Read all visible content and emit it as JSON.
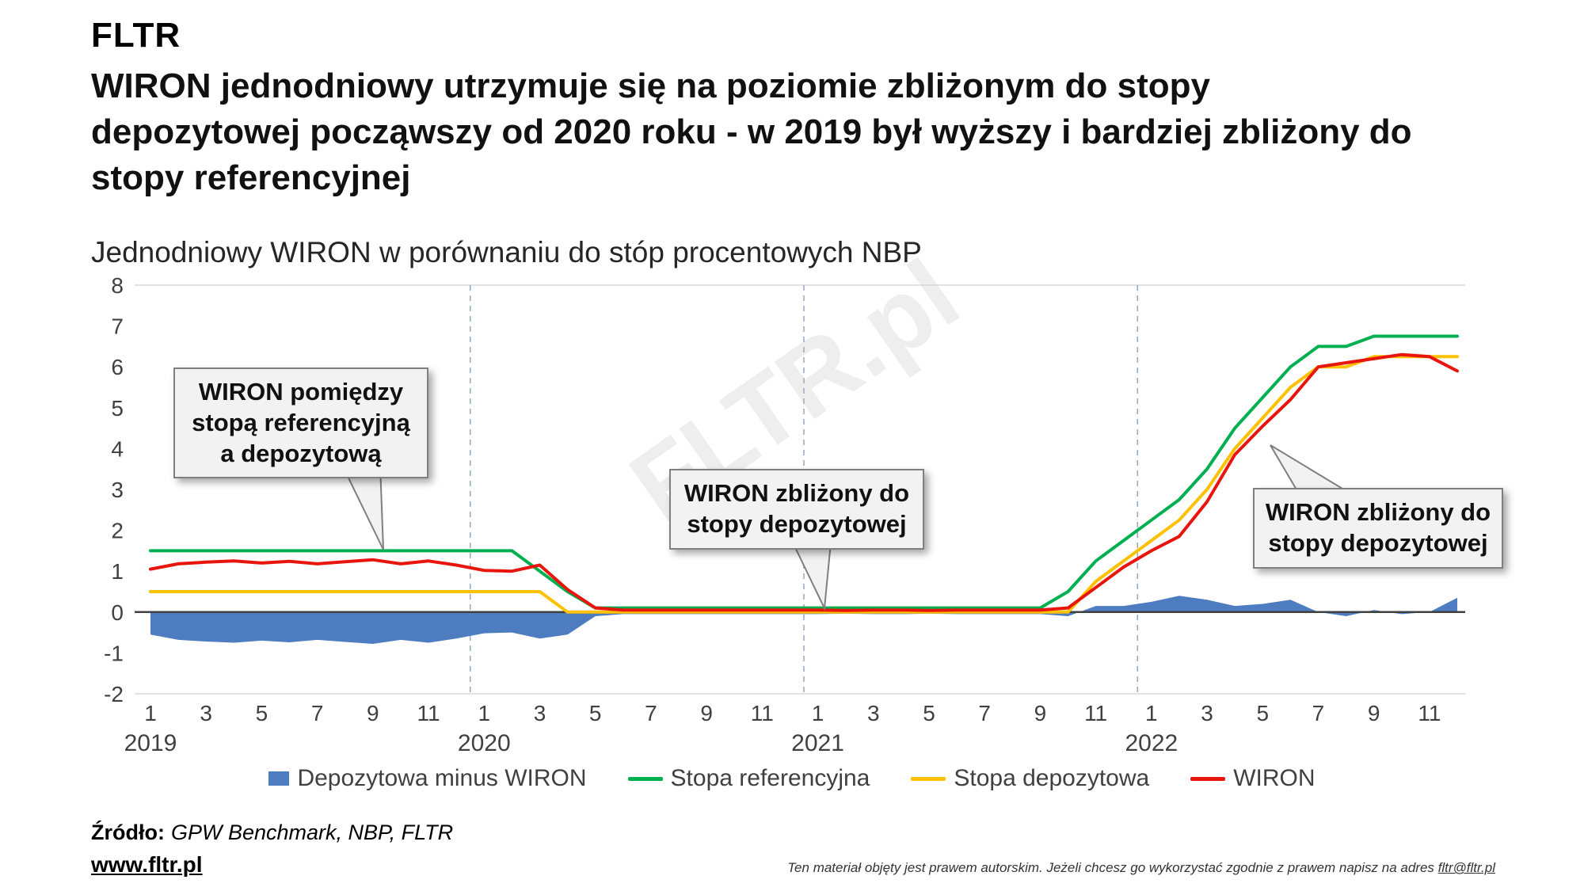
{
  "brand": {
    "logo": "FLTR"
  },
  "headline": "WIRON jednodniowy utrzymuje się na poziomie zbliżonym do stopy\ndepozytowej począwszy od 2020 roku - w 2019 był wyższy i bardziej zbliżony do\nstopy referencyjnej",
  "annotations": [
    {
      "text": "WIRON pomiędzy\nstopą referencyjną\na depozytową"
    },
    {
      "text": "WIRON zbliżony do\nstopy depozytowej"
    },
    {
      "text": "WIRON zbliżony do\nstopy depozytowej"
    }
  ],
  "watermark": {
    "text": "FLTR.pl"
  },
  "chart_data": {
    "type": "line",
    "title": "Jednodniowy WIRON w porównaniu do stóp procentowych NBP",
    "xlabel": "",
    "ylabel": "",
    "ylim": [
      -2,
      8
    ],
    "y_ticks": [
      8,
      7,
      6,
      5,
      4,
      3,
      2,
      1,
      0,
      -1,
      -2
    ],
    "x_years": [
      2019,
      2020,
      2021,
      2022
    ],
    "x_month_ticks": [
      1,
      3,
      5,
      7,
      9,
      11
    ],
    "grid": "zero-axis, year separators dashed, top/bottom light rules",
    "legend_position": "bottom",
    "series": [
      {
        "name": "Depozytowa minus WIRON",
        "type": "area",
        "color": "#4d7cc0",
        "values": [
          -0.55,
          -0.68,
          -0.72,
          -0.75,
          -0.7,
          -0.74,
          -0.68,
          -0.73,
          -0.78,
          -0.68,
          -0.75,
          -0.65,
          -0.52,
          -0.5,
          -0.65,
          -0.55,
          -0.1,
          -0.05,
          -0.05,
          -0.05,
          -0.05,
          -0.05,
          -0.05,
          -0.05,
          -0.05,
          -0.04,
          -0.05,
          -0.05,
          -0.04,
          -0.05,
          -0.05,
          -0.05,
          -0.05,
          -0.1,
          0.15,
          0.15,
          0.25,
          0.4,
          0.3,
          0.15,
          0.2,
          0.3,
          0.0,
          -0.1,
          0.05,
          -0.05,
          0.0,
          0.35
        ]
      },
      {
        "name": "Stopa referencyjna",
        "type": "line",
        "color": "#00b050",
        "values": [
          1.5,
          1.5,
          1.5,
          1.5,
          1.5,
          1.5,
          1.5,
          1.5,
          1.5,
          1.5,
          1.5,
          1.5,
          1.5,
          1.5,
          1.0,
          0.5,
          0.1,
          0.1,
          0.1,
          0.1,
          0.1,
          0.1,
          0.1,
          0.1,
          0.1,
          0.1,
          0.1,
          0.1,
          0.1,
          0.1,
          0.1,
          0.1,
          0.1,
          0.5,
          1.25,
          1.75,
          2.25,
          2.75,
          3.5,
          4.5,
          5.25,
          6.0,
          6.5,
          6.5,
          6.75,
          6.75,
          6.75,
          6.75
        ]
      },
      {
        "name": "Stopa depozytowa",
        "type": "line",
        "color": "#ffc000",
        "values": [
          0.5,
          0.5,
          0.5,
          0.5,
          0.5,
          0.5,
          0.5,
          0.5,
          0.5,
          0.5,
          0.5,
          0.5,
          0.5,
          0.5,
          0.5,
          0.0,
          0.0,
          0.0,
          0.0,
          0.0,
          0.0,
          0.0,
          0.0,
          0.0,
          0.0,
          0.0,
          0.0,
          0.0,
          0.0,
          0.0,
          0.0,
          0.0,
          0.0,
          0.0,
          0.75,
          1.25,
          1.75,
          2.25,
          3.0,
          4.0,
          4.75,
          5.5,
          6.0,
          6.0,
          6.25,
          6.25,
          6.25,
          6.25
        ]
      },
      {
        "name": "WIRON",
        "type": "line",
        "color": "#e8150d",
        "values": [
          1.05,
          1.18,
          1.22,
          1.25,
          1.2,
          1.24,
          1.18,
          1.23,
          1.28,
          1.18,
          1.25,
          1.15,
          1.02,
          1.0,
          1.15,
          0.55,
          0.1,
          0.05,
          0.05,
          0.05,
          0.05,
          0.05,
          0.05,
          0.05,
          0.05,
          0.04,
          0.05,
          0.05,
          0.04,
          0.05,
          0.05,
          0.05,
          0.05,
          0.1,
          0.6,
          1.1,
          1.5,
          1.85,
          2.7,
          3.85,
          4.55,
          5.2,
          6.0,
          6.1,
          6.2,
          6.3,
          6.25,
          5.9
        ]
      }
    ]
  },
  "footer": {
    "source_label": "Źródło:",
    "source_value": "GPW Benchmark, NBP, FLTR",
    "site": "www.fltr.pl",
    "disclaimer_text": "Ten materiał objęty jest prawem autorskim. Jeżeli chcesz go wykorzystać zgodnie z prawem napisz na adres ",
    "disclaimer_link": "fltr@fltr.pl"
  }
}
